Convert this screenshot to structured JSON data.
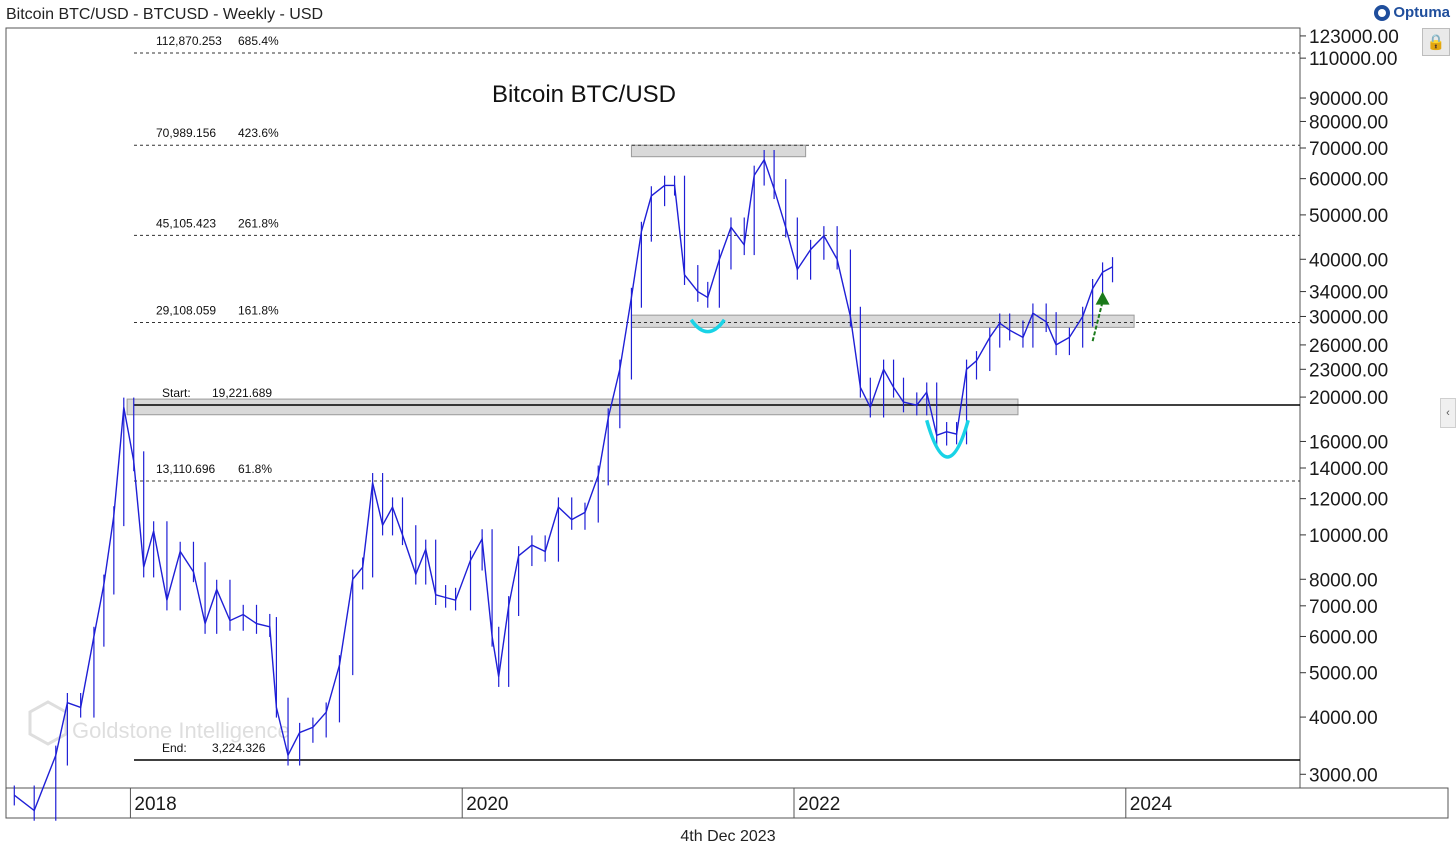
{
  "header": {
    "title": "Bitcoin BTC/USD - BTCUSD - Weekly - USD",
    "brand": "Optuma",
    "brand_icon": "optuma-logo-icon",
    "lock_icon": "lock-icon"
  },
  "footer": {
    "date": "4th Dec 2023"
  },
  "watermark": "Goldstone Intelligence",
  "chart_data": {
    "type": "line",
    "title": "Bitcoin BTC/USD",
    "xlabel": "",
    "ylabel": "",
    "yscale": "log",
    "ylim": [
      2800,
      128000
    ],
    "xlim": [
      2017.25,
      2025.05
    ],
    "x_ticks": [
      {
        "x": 2018.0,
        "label": "2018"
      },
      {
        "x": 2020.0,
        "label": "2020"
      },
      {
        "x": 2022.0,
        "label": "2022"
      },
      {
        "x": 2024.0,
        "label": "2024"
      }
    ],
    "y_ticks": [
      3000,
      4000,
      5000,
      6000,
      7000,
      8000,
      10000,
      12000,
      14000,
      16000,
      20000,
      23000,
      26000,
      30000,
      34000,
      40000,
      50000,
      60000,
      70000,
      80000,
      90000,
      110000,
      123000
    ],
    "y_tick_labels": [
      "3000.00",
      "4000.00",
      "5000.00",
      "6000.00",
      "7000.00",
      "8000.00",
      "10000.00",
      "12000.00",
      "14000.00",
      "16000.00",
      "20000.00",
      "23000.00",
      "26000.00",
      "30000.00",
      "34000.00",
      "40000.00",
      "50000.00",
      "60000.00",
      "70000.00",
      "80000.00",
      "90000.00",
      "110000.00",
      "123000.00"
    ],
    "series": [
      {
        "color": "#1f1fd6",
        "points": [
          [
            2017.3,
            2700
          ],
          [
            2017.42,
            2500
          ],
          [
            2017.55,
            3300
          ],
          [
            2017.62,
            4300
          ],
          [
            2017.7,
            4200
          ],
          [
            2017.78,
            6000
          ],
          [
            2017.84,
            7800
          ],
          [
            2017.9,
            11000
          ],
          [
            2017.96,
            19000
          ],
          [
            2018.02,
            14500
          ],
          [
            2018.08,
            8500
          ],
          [
            2018.14,
            10200
          ],
          [
            2018.22,
            7200
          ],
          [
            2018.3,
            9200
          ],
          [
            2018.38,
            8300
          ],
          [
            2018.45,
            6400
          ],
          [
            2018.52,
            7600
          ],
          [
            2018.6,
            6500
          ],
          [
            2018.68,
            6700
          ],
          [
            2018.76,
            6400
          ],
          [
            2018.84,
            6300
          ],
          [
            2018.88,
            4200
          ],
          [
            2018.95,
            3300
          ],
          [
            2019.02,
            3700
          ],
          [
            2019.1,
            3800
          ],
          [
            2019.18,
            4100
          ],
          [
            2019.26,
            5200
          ],
          [
            2019.34,
            8000
          ],
          [
            2019.4,
            8500
          ],
          [
            2019.46,
            13000
          ],
          [
            2019.52,
            10500
          ],
          [
            2019.58,
            11500
          ],
          [
            2019.64,
            10000
          ],
          [
            2019.72,
            8200
          ],
          [
            2019.78,
            9300
          ],
          [
            2019.84,
            7400
          ],
          [
            2019.9,
            7300
          ],
          [
            2019.96,
            7200
          ],
          [
            2020.05,
            8800
          ],
          [
            2020.12,
            9800
          ],
          [
            2020.18,
            6000
          ],
          [
            2020.22,
            4900
          ],
          [
            2020.28,
            7000
          ],
          [
            2020.34,
            9000
          ],
          [
            2020.42,
            9500
          ],
          [
            2020.5,
            9200
          ],
          [
            2020.58,
            11500
          ],
          [
            2020.66,
            10800
          ],
          [
            2020.74,
            11200
          ],
          [
            2020.82,
            13500
          ],
          [
            2020.88,
            18000
          ],
          [
            2020.95,
            23000
          ],
          [
            2021.02,
            33000
          ],
          [
            2021.08,
            46000
          ],
          [
            2021.14,
            55000
          ],
          [
            2021.22,
            58000
          ],
          [
            2021.28,
            58000
          ],
          [
            2021.34,
            37000
          ],
          [
            2021.42,
            34000
          ],
          [
            2021.48,
            33000
          ],
          [
            2021.55,
            40000
          ],
          [
            2021.62,
            47000
          ],
          [
            2021.7,
            43000
          ],
          [
            2021.76,
            61000
          ],
          [
            2021.82,
            66000
          ],
          [
            2021.88,
            57000
          ],
          [
            2021.95,
            47000
          ],
          [
            2022.02,
            38000
          ],
          [
            2022.1,
            42000
          ],
          [
            2022.18,
            45000
          ],
          [
            2022.26,
            40000
          ],
          [
            2022.34,
            30000
          ],
          [
            2022.4,
            21000
          ],
          [
            2022.46,
            19000
          ],
          [
            2022.54,
            23000
          ],
          [
            2022.6,
            21000
          ],
          [
            2022.66,
            19500
          ],
          [
            2022.74,
            19200
          ],
          [
            2022.8,
            20500
          ],
          [
            2022.86,
            16500
          ],
          [
            2022.92,
            16800
          ],
          [
            2022.98,
            16600
          ],
          [
            2023.04,
            23000
          ],
          [
            2023.1,
            24000
          ],
          [
            2023.18,
            27000
          ],
          [
            2023.24,
            29000
          ],
          [
            2023.3,
            28000
          ],
          [
            2023.38,
            27000
          ],
          [
            2023.44,
            30500
          ],
          [
            2023.52,
            29200
          ],
          [
            2023.58,
            26000
          ],
          [
            2023.66,
            27000
          ],
          [
            2023.74,
            30000
          ],
          [
            2023.8,
            34500
          ],
          [
            2023.86,
            37500
          ],
          [
            2023.92,
            38500
          ]
        ]
      }
    ],
    "horizontal_levels": [
      {
        "label": "112,870.253",
        "pct": "685.4%",
        "value": 112870.253,
        "style": "dashed"
      },
      {
        "label": "70,989.156",
        "pct": "423.6%",
        "value": 70989.156,
        "style": "dashed"
      },
      {
        "label": "45,105.423",
        "pct": "261.8%",
        "value": 45105.423,
        "style": "dashed"
      },
      {
        "label": "29,108.059",
        "pct": "161.8%",
        "value": 29108.059,
        "style": "dashed"
      },
      {
        "label": "Start:",
        "pct": "19,221.689",
        "value": 19221.689,
        "style": "solid"
      },
      {
        "label": "13,110.696",
        "pct": "61.8%",
        "value": 13110.696,
        "style": "dashed"
      },
      {
        "label": "End:",
        "pct": "3,224.326",
        "value": 3224.326,
        "style": "solid"
      }
    ],
    "zones": [
      {
        "x_start": 2021.02,
        "x_end": 2022.07,
        "y_low": 67000,
        "y_high": 71000
      },
      {
        "x_start": 2021.02,
        "x_end": 2024.05,
        "y_low": 28400,
        "y_high": 30200
      },
      {
        "x_start": 2017.98,
        "x_end": 2023.35,
        "y_low": 18300,
        "y_high": 19800
      }
    ],
    "annotations": [
      {
        "type": "cup",
        "color": "#19d3e6",
        "x_start": 2021.38,
        "x_end": 2021.58,
        "y_top": 29500,
        "y_bottom": 27800
      },
      {
        "type": "cup",
        "color": "#19d3e6",
        "x_start": 2022.8,
        "x_end": 2023.05,
        "y_top": 17800,
        "y_bottom": 14800
      },
      {
        "type": "arrow",
        "color": "#1b7a1b",
        "x_from": 2023.8,
        "y_from": 26500,
        "x_to": 2023.86,
        "y_to": 34000
      }
    ],
    "grid": false,
    "legend": "none"
  }
}
